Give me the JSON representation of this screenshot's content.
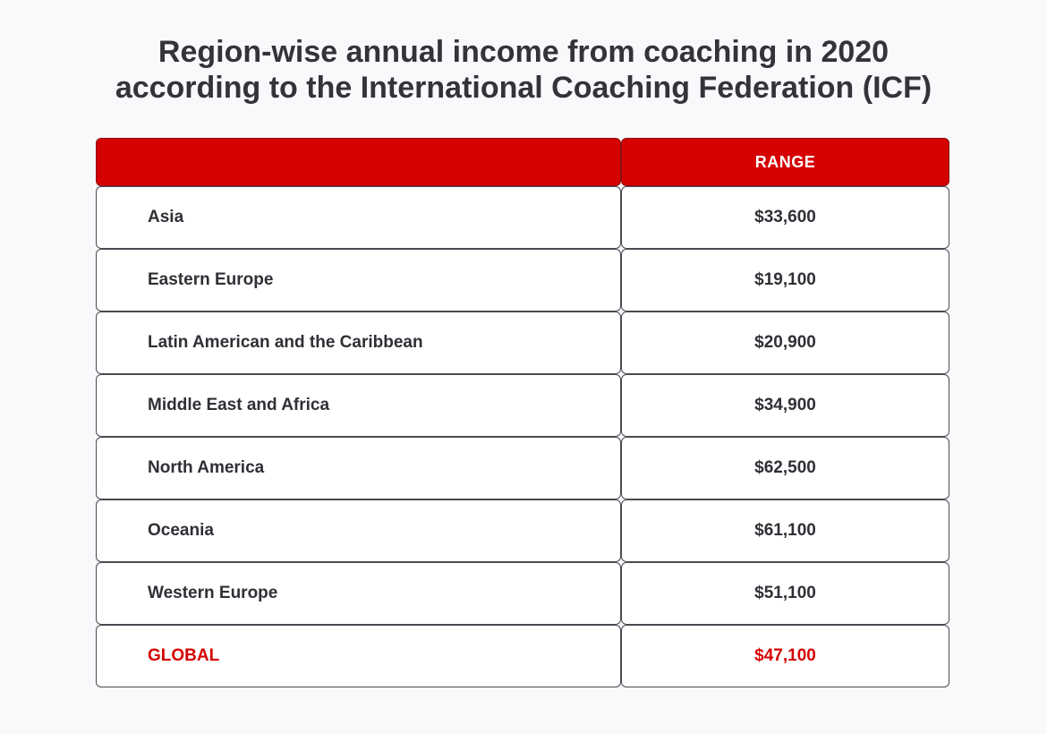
{
  "title_lines": [
    "Region-wise annual income from coaching in 2020",
    "according to the International Coaching Federation (ICF)"
  ],
  "colors": {
    "accent": "#d50000",
    "text": "#2f2f36",
    "background": "#f8f9fb"
  },
  "chart_data": {
    "type": "table",
    "title": "Region-wise annual income from coaching in 2020 according to the International Coaching Federation (ICF)",
    "columns": [
      "",
      "RANGE"
    ],
    "rows": [
      {
        "region": "Asia",
        "range": "$33,600",
        "value": 33600
      },
      {
        "region": "Eastern Europe",
        "range": "$19,100",
        "value": 19100
      },
      {
        "region": "Latin American and the Caribbean",
        "range": "$20,900",
        "value": 20900
      },
      {
        "region": "Middle East and Africa",
        "range": "$34,900",
        "value": 34900
      },
      {
        "region": "North America",
        "range": "$62,500",
        "value": 62500
      },
      {
        "region": "Oceania",
        "range": "$61,100",
        "value": 61100
      },
      {
        "region": "Western Europe",
        "range": "$51,100",
        "value": 51100
      },
      {
        "region": "GLOBAL",
        "range": "$47,100",
        "value": 47100,
        "highlight": true
      }
    ]
  }
}
